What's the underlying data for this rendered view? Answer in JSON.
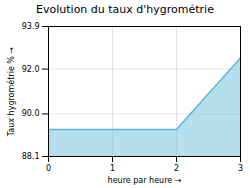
{
  "chart_data": {
    "type": "area",
    "title": "Evolution du taux d'hygrométrie",
    "xlabel": "heure par heure",
    "ylabel": "Taux hygrométrie %",
    "x": [
      0,
      1,
      2,
      3
    ],
    "values": [
      89.3,
      89.3,
      89.3,
      92.5
    ],
    "color": "#5bb8d4",
    "xlim": [
      0,
      3
    ],
    "ylim": [
      88.1,
      93.9
    ],
    "xticks": [
      0,
      1,
      2,
      3
    ],
    "yticks": [
      88.1,
      {
        "value": 90,
        "label": "90.0"
      },
      {
        "value": 92,
        "label": "92.0"
      },
      93.9
    ],
    "grid": true
  }
}
